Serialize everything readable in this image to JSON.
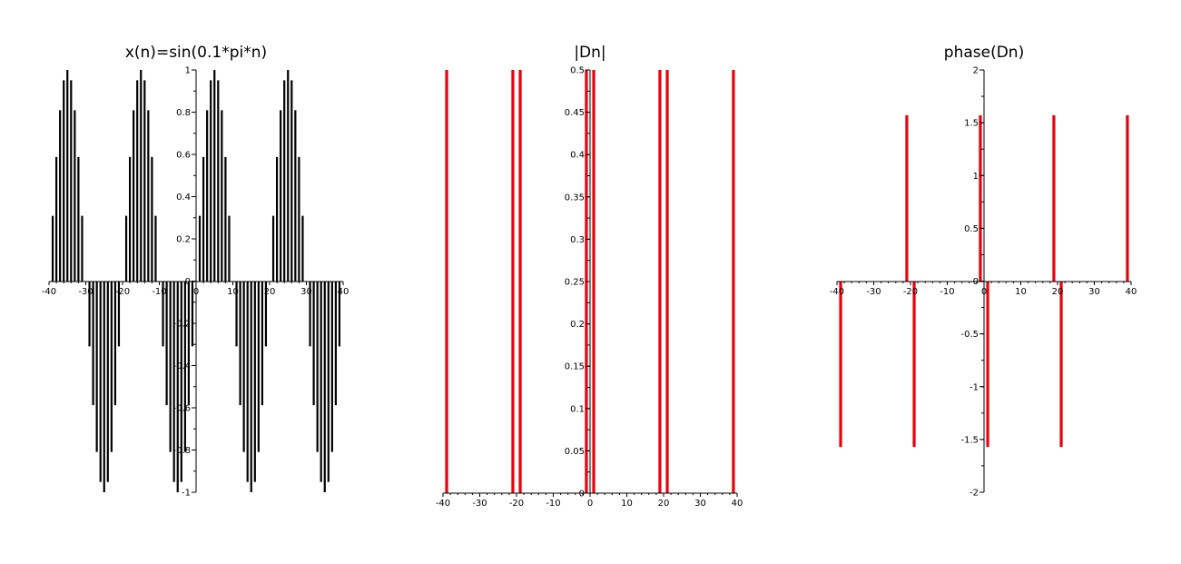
{
  "colors": {
    "stem_black": "#000000",
    "stem_red": "#e8000b",
    "axis": "#000000",
    "background": "#ffffff"
  },
  "chart_data": [
    {
      "type": "stem",
      "title": "x(n)=sin(0.1*pi*n)",
      "xlabel": "",
      "ylabel": "",
      "xlim": [
        -40,
        40
      ],
      "ylim": [
        -1,
        1
      ],
      "x_ticks": [
        "-40",
        "-30",
        "-20",
        "-10",
        "0",
        "10",
        "20",
        "30",
        "40"
      ],
      "y_ticks": [
        "-1",
        "-0.8",
        "-0.6",
        "-0.4",
        "-0.2",
        "0",
        "0.2",
        "0.4",
        "0.6",
        "0.8",
        "1"
      ],
      "color": "#000000",
      "formula": "sin(0.1*pi*n)",
      "n_range": [
        -40,
        40
      ]
    },
    {
      "type": "stem",
      "title": "|Dn|",
      "xlabel": "",
      "ylabel": "",
      "xlim": [
        -40,
        40
      ],
      "ylim": [
        0,
        0.5
      ],
      "x_ticks": [
        "-40",
        "-30",
        "-20",
        "-10",
        "0",
        "10",
        "20",
        "30",
        "40"
      ],
      "y_ticks": [
        "0",
        "0.05",
        "0.1",
        "0.15",
        "0.2",
        "0.25",
        "0.3",
        "0.35",
        "0.4",
        "0.45",
        "0.5"
      ],
      "color": "#e8000b",
      "x": [
        -39,
        -21,
        -19,
        -1,
        1,
        19,
        21,
        39
      ],
      "y": [
        0.5,
        0.5,
        0.5,
        0.5,
        0.5,
        0.5,
        0.5,
        0.5
      ]
    },
    {
      "type": "stem",
      "title": "phase(Dn)",
      "xlabel": "",
      "ylabel": "",
      "xlim": [
        -40,
        40
      ],
      "ylim": [
        -2,
        2
      ],
      "x_ticks": [
        "-40",
        "-30",
        "-20",
        "-10",
        "0",
        "10",
        "20",
        "30",
        "40"
      ],
      "y_ticks": [
        "-2",
        "-1.5",
        "-1",
        "-0.5",
        "0",
        "0.5",
        "1",
        "1.5",
        "2"
      ],
      "color": "#e8000b",
      "x": [
        -39,
        -21,
        -19,
        -1,
        1,
        19,
        21,
        39
      ],
      "y": [
        -1.5708,
        1.5708,
        -1.5708,
        1.5708,
        -1.5708,
        1.5708,
        -1.5708,
        1.5708
      ]
    }
  ]
}
